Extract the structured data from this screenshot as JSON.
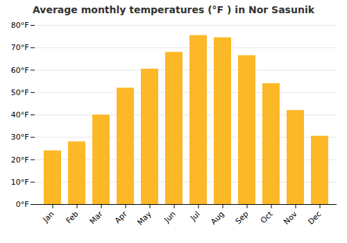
{
  "chart_data": {
    "type": "bar",
    "title": "Average monthly temperatures (°F ) in Nor Sasunik",
    "categories": [
      "Jan",
      "Feb",
      "Mar",
      "Apr",
      "May",
      "Jun",
      "Jul",
      "Aug",
      "Sep",
      "Oct",
      "Nov",
      "Dec"
    ],
    "values": [
      24,
      28,
      40,
      52,
      60.5,
      68,
      75.5,
      74.5,
      66.5,
      54,
      42,
      30.5
    ],
    "color": "#FDB827",
    "ylim": [
      0,
      80
    ],
    "yticks": [
      {
        "value": 0,
        "label": "0°F"
      },
      {
        "value": 10,
        "label": "10°F"
      },
      {
        "value": 20,
        "label": "20°F"
      },
      {
        "value": 30,
        "label": "30°F"
      },
      {
        "value": 40,
        "label": "40°F"
      },
      {
        "value": 50,
        "label": "50°F"
      },
      {
        "value": 60,
        "label": "60°F"
      },
      {
        "value": 70,
        "label": "70°F"
      },
      {
        "value": 80,
        "label": "80°F"
      }
    ],
    "grid": true
  }
}
